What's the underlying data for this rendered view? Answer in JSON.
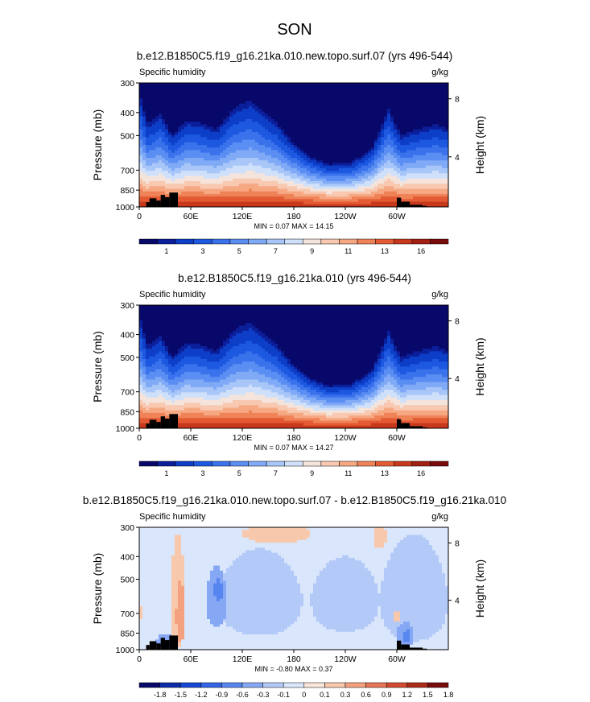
{
  "page_title": "SON",
  "colors": {
    "scale_17": [
      "#08086b",
      "#0b1f9a",
      "#0d3ec8",
      "#1d58e0",
      "#3a72ec",
      "#5b8ef3",
      "#80aaf6",
      "#a8c6f8",
      "#cfe0fa",
      "#f4e4dc",
      "#f8c9b0",
      "#f6a883",
      "#f08258",
      "#e35a33",
      "#c8381c",
      "#a31f12",
      "#7a0b0b"
    ],
    "scale_diff": [
      "#08086b",
      "#0d2aa8",
      "#1648d6",
      "#3366e6",
      "#5886f0",
      "#86a8f4",
      "#b3c9f7",
      "#d9e6fb",
      "#fbe6da",
      "#f8c8ad",
      "#f3a17f",
      "#e87555",
      "#d34a30",
      "#ac2a18",
      "#7a0b0b"
    ],
    "topo": "#000000"
  },
  "chart_data": [
    {
      "type": "heatmap",
      "title": "b.e12.B1850C5.f19_g16.21ka.010.new.topo.surf.07 (yrs 496-544)",
      "left_label": "Specific humidity",
      "right_label": "g/kg",
      "ylabel": "Pressure (mb)",
      "ylabel_right": "Height (km)",
      "yticks": [
        "300",
        "400",
        "500",
        "700",
        "850",
        "1000"
      ],
      "yticks_right": [
        "8",
        "4"
      ],
      "xticks": [
        "0",
        "60E",
        "120E",
        "180",
        "120W",
        "60W"
      ],
      "stats": "MIN =  0.07  MAX =  14.15",
      "colorbar_labels": [
        "1",
        "3",
        "5",
        "7",
        "9",
        "11",
        "13",
        "16"
      ],
      "levels": [
        0.5,
        1,
        2,
        3,
        4,
        5,
        6,
        7,
        8,
        9,
        10,
        11,
        12,
        13,
        14,
        16
      ],
      "profile": [
        {
          "lon": 0,
          "b": 300
        },
        {
          "lon": 10,
          "b": 430
        },
        {
          "lon": 25,
          "b": 380
        },
        {
          "lon": 38,
          "b": 480
        },
        {
          "lon": 55,
          "b": 410
        },
        {
          "lon": 70,
          "b": 420
        },
        {
          "lon": 90,
          "b": 450
        },
        {
          "lon": 110,
          "b": 360
        },
        {
          "lon": 130,
          "b": 330
        },
        {
          "lon": 160,
          "b": 420
        },
        {
          "lon": 180,
          "b": 520
        },
        {
          "lon": 200,
          "b": 600
        },
        {
          "lon": 220,
          "b": 650
        },
        {
          "lon": 245,
          "b": 640
        },
        {
          "lon": 270,
          "b": 560
        },
        {
          "lon": 290,
          "b": 360
        },
        {
          "lon": 305,
          "b": 480
        },
        {
          "lon": 325,
          "b": 450
        },
        {
          "lon": 345,
          "b": 430
        },
        {
          "lon": 360,
          "b": 450
        }
      ],
      "topo": [
        [
          8,
          955
        ],
        [
          12,
          920
        ],
        [
          20,
          940
        ],
        [
          25,
          890
        ],
        [
          30,
          910
        ],
        [
          35,
          870
        ],
        [
          45,
          1000
        ],
        [
          300,
          915
        ],
        [
          305,
          950
        ],
        [
          315,
          980
        ],
        [
          330,
          990
        ],
        [
          335,
          1000
        ]
      ]
    },
    {
      "type": "heatmap",
      "title": "b.e12.B1850C5.f19_g16.21ka.010 (yrs 496-544)",
      "left_label": "Specific humidity",
      "right_label": "g/kg",
      "ylabel": "Pressure (mb)",
      "ylabel_right": "Height (km)",
      "yticks": [
        "300",
        "400",
        "500",
        "700",
        "850",
        "1000"
      ],
      "yticks_right": [
        "8",
        "4"
      ],
      "xticks": [
        "0",
        "60E",
        "120E",
        "180",
        "120W",
        "60W"
      ],
      "stats": "MIN =  0.07  MAX =  14.27",
      "colorbar_labels": [
        "1",
        "3",
        "5",
        "7",
        "9",
        "11",
        "13",
        "16"
      ],
      "levels": [
        0.5,
        1,
        2,
        3,
        4,
        5,
        6,
        7,
        8,
        9,
        10,
        11,
        12,
        13,
        14,
        16
      ],
      "profile": [
        {
          "lon": 0,
          "b": 300
        },
        {
          "lon": 10,
          "b": 430
        },
        {
          "lon": 25,
          "b": 380
        },
        {
          "lon": 38,
          "b": 480
        },
        {
          "lon": 55,
          "b": 410
        },
        {
          "lon": 70,
          "b": 420
        },
        {
          "lon": 90,
          "b": 450
        },
        {
          "lon": 110,
          "b": 360
        },
        {
          "lon": 130,
          "b": 330
        },
        {
          "lon": 160,
          "b": 420
        },
        {
          "lon": 180,
          "b": 520
        },
        {
          "lon": 200,
          "b": 600
        },
        {
          "lon": 220,
          "b": 650
        },
        {
          "lon": 245,
          "b": 640
        },
        {
          "lon": 270,
          "b": 560
        },
        {
          "lon": 290,
          "b": 360
        },
        {
          "lon": 305,
          "b": 480
        },
        {
          "lon": 325,
          "b": 450
        },
        {
          "lon": 345,
          "b": 430
        },
        {
          "lon": 360,
          "b": 450
        }
      ],
      "topo": [
        [
          8,
          955
        ],
        [
          12,
          920
        ],
        [
          20,
          940
        ],
        [
          25,
          890
        ],
        [
          30,
          910
        ],
        [
          35,
          870
        ],
        [
          45,
          1000
        ],
        [
          300,
          915
        ],
        [
          305,
          950
        ],
        [
          315,
          980
        ],
        [
          330,
          990
        ],
        [
          335,
          1000
        ]
      ]
    },
    {
      "type": "heatmap",
      "title": "b.e12.B1850C5.f19_g16.21ka.010.new.topo.surf.07 - b.e12.B1850C5.f19_g16.21ka.010",
      "left_label": "Specific humidity",
      "right_label": "g/kg",
      "ylabel": "Pressure (mb)",
      "ylabel_right": "Height (km)",
      "yticks": [
        "300",
        "400",
        "500",
        "700",
        "850",
        "1000"
      ],
      "yticks_right": [
        "8",
        "4"
      ],
      "xticks": [
        "0",
        "60E",
        "120E",
        "180",
        "120W",
        "60W"
      ],
      "stats": "MIN = -0.80  MAX =  0.37",
      "colorbar_labels": [
        "-1.8",
        "-1.5",
        "-1.2",
        "-0.9",
        "-0.6",
        "-0.3",
        "-0.1",
        "0",
        "0.1",
        "0.3",
        "0.6",
        "0.9",
        "1.2",
        "1.5",
        "1.8"
      ],
      "background_level": -0.05,
      "patches": [
        {
          "lon": 45,
          "p": 650,
          "lon_halfwidth": 9,
          "p_halfdepth": 330,
          "v": 0.2
        },
        {
          "lon": 48,
          "p": 720,
          "lon_halfwidth": 5,
          "p_halfdepth": 220,
          "v": 0.35
        },
        {
          "lon": 140,
          "p": 620,
          "lon_halfwidth": 50,
          "p_halfdepth": 250,
          "v": -0.2
        },
        {
          "lon": 240,
          "p": 620,
          "lon_halfwidth": 40,
          "p_halfdepth": 220,
          "v": -0.2
        },
        {
          "lon": 320,
          "p": 620,
          "lon_halfwidth": 40,
          "p_halfdepth": 300,
          "v": -0.2
        },
        {
          "lon": 90,
          "p": 620,
          "lon_halfwidth": 12,
          "p_halfdepth": 180,
          "v": -0.4
        },
        {
          "lon": 92,
          "p": 560,
          "lon_halfwidth": 5,
          "p_halfdepth": 60,
          "v": -0.65
        },
        {
          "lon": 30,
          "p": 920,
          "lon_halfwidth": 10,
          "p_halfdepth": 70,
          "v": -0.35
        },
        {
          "lon": 310,
          "p": 870,
          "lon_halfwidth": 10,
          "p_halfdepth": 110,
          "v": -0.45
        },
        {
          "lon": 312,
          "p": 880,
          "lon_halfwidth": 4,
          "p_halfdepth": 60,
          "v": -0.8
        },
        {
          "lon": 280,
          "p": 330,
          "lon_halfwidth": 8,
          "p_halfdepth": 40,
          "v": 0.1
        },
        {
          "lon": 2,
          "p": 700,
          "lon_halfwidth": 3,
          "p_halfdepth": 40,
          "v": 0.1
        },
        {
          "lon": 300,
          "p": 720,
          "lon_halfwidth": 4,
          "p_halfdepth": 40,
          "v": 0.1
        },
        {
          "lon": 160,
          "p": 320,
          "lon_halfwidth": 40,
          "p_halfdepth": 30,
          "v": 0.1
        }
      ],
      "topo": [
        [
          8,
          955
        ],
        [
          12,
          920
        ],
        [
          20,
          940
        ],
        [
          25,
          890
        ],
        [
          30,
          910
        ],
        [
          35,
          870
        ],
        [
          45,
          1000
        ],
        [
          300,
          915
        ],
        [
          305,
          950
        ],
        [
          315,
          980
        ],
        [
          330,
          990
        ],
        [
          335,
          1000
        ]
      ]
    }
  ]
}
